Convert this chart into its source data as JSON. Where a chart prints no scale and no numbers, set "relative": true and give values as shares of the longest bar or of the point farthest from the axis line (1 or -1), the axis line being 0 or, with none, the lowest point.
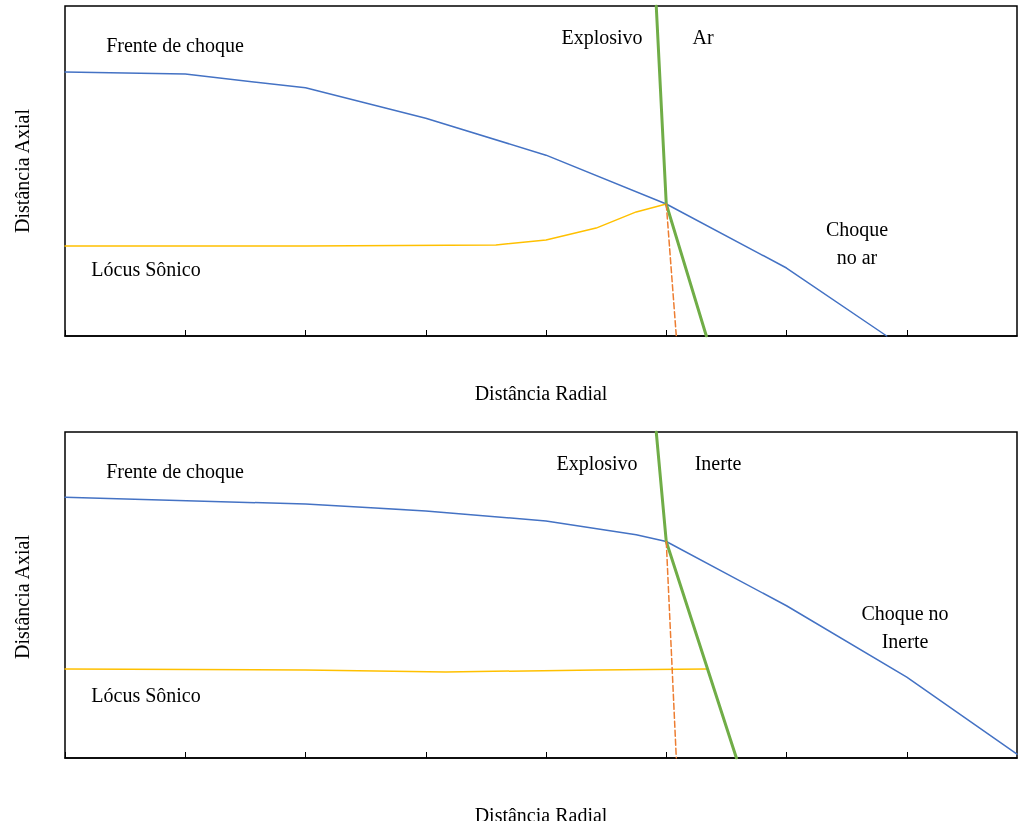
{
  "chart_data": [
    {
      "type": "line",
      "relative": true,
      "marker": "none",
      "xlabel": "Distância Radial",
      "ylabel": "Distância Axial",
      "categories": [
        null,
        null,
        null,
        null,
        null,
        null,
        null,
        null,
        null,
        null,
        null,
        null,
        null,
        null,
        null,
        null,
        null,
        null,
        null,
        null,
        null,
        null,
        null,
        null,
        null,
        null,
        null,
        null,
        null,
        null,
        null,
        null,
        null,
        null,
        null,
        null,
        null,
        null,
        null,
        null,
        null,
        null,
        null,
        null,
        null,
        null,
        null,
        null,
        null,
        null,
        null,
        null,
        null,
        null,
        null,
        null,
        null,
        null,
        null,
        null,
        null,
        null,
        null,
        null,
        null,
        null,
        null,
        null,
        null,
        null,
        null,
        null,
        null,
        null,
        null,
        null,
        null,
        null,
        null,
        null,
        null,
        null,
        null,
        null,
        null,
        null,
        null,
        null,
        null,
        null,
        null,
        null,
        null,
        null,
        null,
        null
      ],
      "series": [
        {
          "color": "#4472c4",
          "line_style": "solid",
          "values": [
            0.8,
            null,
            null,
            null,
            null,
            null,
            null,
            null,
            null,
            null,
            null,
            null,
            0.794,
            null,
            null,
            null,
            null,
            null,
            null,
            null,
            null,
            null,
            null,
            null,
            0.752,
            null,
            null,
            null,
            null,
            null,
            null,
            null,
            null,
            null,
            null,
            null,
            0.66,
            null,
            null,
            null,
            null,
            null,
            null,
            null,
            null,
            null,
            null,
            null,
            0.548,
            null,
            null,
            null,
            null,
            null,
            null,
            null,
            null,
            null,
            null,
            null,
            0.4,
            null,
            null,
            null,
            null,
            null,
            null,
            null,
            null,
            null,
            null,
            null,
            0.206,
            null,
            null,
            null,
            null,
            null,
            null,
            null,
            null,
            null,
            0,
            null,
            null,
            null,
            null,
            null,
            null,
            null,
            null,
            null,
            null,
            null,
            null,
            null
          ]
        },
        {
          "color": "#ffc000",
          "line_style": "solid",
          "values": [
            0.273,
            null,
            null,
            null,
            null,
            null,
            null,
            null,
            null,
            null,
            null,
            null,
            null,
            null,
            null,
            null,
            null,
            null,
            null,
            null,
            null,
            null,
            null,
            null,
            0.273,
            null,
            null,
            null,
            null,
            null,
            null,
            null,
            null,
            null,
            null,
            null,
            null,
            null,
            null,
            null,
            null,
            null,
            null,
            0.276,
            null,
            null,
            null,
            null,
            0.291,
            null,
            null,
            null,
            null,
            0.327,
            null,
            null,
            null,
            0.376,
            null,
            null,
            0.4,
            null,
            null,
            null,
            null,
            null,
            null,
            null,
            null,
            null,
            null,
            null,
            null,
            null,
            null,
            null,
            null,
            null,
            null,
            null,
            null,
            null,
            null,
            null,
            null,
            null,
            null,
            null,
            null,
            null,
            null,
            null,
            null,
            null,
            null,
            null
          ]
        },
        {
          "color": "#70ad47",
          "line_style": "solid",
          "values": [
            null,
            null,
            null,
            null,
            null,
            null,
            null,
            null,
            null,
            null,
            null,
            null,
            null,
            null,
            null,
            null,
            null,
            null,
            null,
            null,
            null,
            null,
            null,
            null,
            null,
            null,
            null,
            null,
            null,
            null,
            null,
            null,
            null,
            null,
            null,
            null,
            null,
            null,
            null,
            null,
            null,
            null,
            null,
            null,
            null,
            null,
            null,
            null,
            null,
            null,
            null,
            null,
            null,
            null,
            null,
            null,
            null,
            null,
            null,
            1,
            0.4,
            null,
            null,
            null,
            0,
            null,
            null,
            null,
            null,
            null,
            null,
            null,
            null,
            null,
            null,
            null,
            null,
            null,
            null,
            null,
            null,
            null,
            null,
            null,
            null,
            null,
            null,
            null,
            null,
            null,
            null,
            null,
            null,
            null,
            null,
            null
          ]
        },
        {
          "color": "#ed7d31",
          "line_style": "dashed",
          "values": [
            null,
            null,
            null,
            null,
            null,
            null,
            null,
            null,
            null,
            null,
            null,
            null,
            null,
            null,
            null,
            null,
            null,
            null,
            null,
            null,
            null,
            null,
            null,
            null,
            null,
            null,
            null,
            null,
            null,
            null,
            null,
            null,
            null,
            null,
            null,
            null,
            null,
            null,
            null,
            null,
            null,
            null,
            null,
            null,
            null,
            null,
            null,
            null,
            null,
            null,
            null,
            null,
            null,
            null,
            null,
            null,
            null,
            null,
            null,
            null,
            0.4,
            0,
            null,
            null,
            null,
            null,
            null,
            null,
            null,
            null,
            null,
            null,
            null,
            null,
            null,
            null,
            null,
            null,
            null,
            null,
            null,
            null,
            null,
            null,
            null,
            null,
            null,
            null,
            null,
            null,
            null,
            null,
            null,
            null,
            null,
            null
          ]
        }
      ],
      "annotations": [
        "Frente de choque",
        "Explosivo",
        "Ar",
        "Choque\nno ar",
        "Lócus Sônico"
      ]
    },
    {
      "type": "line",
      "relative": true,
      "marker": "none",
      "xlabel": "Distância Radial",
      "ylabel": "Distância Axial",
      "categories": [
        null,
        null,
        null,
        null,
        null,
        null,
        null,
        null,
        null,
        null,
        null,
        null,
        null,
        null,
        null,
        null,
        null,
        null,
        null,
        null,
        null,
        null,
        null,
        null,
        null,
        null,
        null,
        null,
        null,
        null,
        null,
        null,
        null,
        null,
        null,
        null,
        null,
        null,
        null,
        null,
        null,
        null,
        null,
        null,
        null,
        null,
        null,
        null,
        null,
        null,
        null,
        null,
        null,
        null,
        null,
        null,
        null,
        null,
        null,
        null,
        null,
        null,
        null,
        null,
        null,
        null,
        null,
        null,
        null,
        null,
        null,
        null,
        null,
        null,
        null,
        null,
        null,
        null,
        null,
        null,
        null,
        null,
        null,
        null,
        null,
        null,
        null,
        null,
        null,
        null,
        null,
        null,
        null,
        null,
        null,
        null
      ],
      "series": [
        {
          "color": "#4472c4",
          "line_style": "solid",
          "values": [
            0.8,
            null,
            null,
            null,
            null,
            null,
            null,
            null,
            null,
            null,
            null,
            null,
            null,
            null,
            null,
            null,
            null,
            null,
            null,
            null,
            null,
            null,
            null,
            null,
            0.779,
            null,
            null,
            null,
            null,
            null,
            null,
            null,
            null,
            null,
            null,
            null,
            0.758,
            null,
            null,
            null,
            null,
            null,
            null,
            null,
            null,
            null,
            null,
            null,
            0.727,
            null,
            null,
            null,
            null,
            null,
            null,
            null,
            null,
            0.685,
            null,
            null,
            0.664,
            null,
            null,
            null,
            null,
            null,
            null,
            null,
            null,
            null,
            null,
            null,
            0.467,
            null,
            null,
            null,
            null,
            null,
            null,
            null,
            null,
            null,
            null,
            null,
            0.248,
            null,
            null,
            null,
            null,
            null,
            null,
            null,
            null,
            null,
            null,
            0.012
          ]
        },
        {
          "color": "#ffc000",
          "line_style": "solid",
          "values": [
            0.273,
            null,
            null,
            null,
            null,
            null,
            null,
            null,
            null,
            null,
            null,
            null,
            null,
            null,
            null,
            null,
            null,
            null,
            null,
            null,
            null,
            null,
            null,
            null,
            0.27,
            null,
            null,
            null,
            null,
            null,
            null,
            null,
            null,
            null,
            null,
            null,
            null,
            null,
            0.264,
            null,
            null,
            null,
            null,
            null,
            null,
            null,
            null,
            null,
            null,
            null,
            null,
            null,
            null,
            0.27,
            null,
            null,
            null,
            null,
            null,
            null,
            null,
            null,
            null,
            null,
            0.273,
            null,
            null,
            null,
            null,
            null,
            null,
            null,
            null,
            null,
            null,
            null,
            null,
            null,
            null,
            null,
            null,
            null,
            null,
            null,
            null,
            null,
            null,
            null,
            null,
            null,
            null,
            null,
            null,
            null,
            null,
            null
          ]
        },
        {
          "color": "#70ad47",
          "line_style": "solid",
          "values": [
            null,
            null,
            null,
            null,
            null,
            null,
            null,
            null,
            null,
            null,
            null,
            null,
            null,
            null,
            null,
            null,
            null,
            null,
            null,
            null,
            null,
            null,
            null,
            null,
            null,
            null,
            null,
            null,
            null,
            null,
            null,
            null,
            null,
            null,
            null,
            null,
            null,
            null,
            null,
            null,
            null,
            null,
            null,
            null,
            null,
            null,
            null,
            null,
            null,
            null,
            null,
            null,
            null,
            null,
            null,
            null,
            null,
            null,
            null,
            1,
            0.664,
            null,
            null,
            null,
            null,
            null,
            null,
            0,
            null,
            null,
            null,
            null,
            null,
            null,
            null,
            null,
            null,
            null,
            null,
            null,
            null,
            null,
            null,
            null,
            null,
            null,
            null,
            null,
            null,
            null,
            null,
            null,
            null,
            null,
            null,
            null
          ]
        },
        {
          "color": "#ed7d31",
          "line_style": "dashed",
          "values": [
            null,
            null,
            null,
            null,
            null,
            null,
            null,
            null,
            null,
            null,
            null,
            null,
            null,
            null,
            null,
            null,
            null,
            null,
            null,
            null,
            null,
            null,
            null,
            null,
            null,
            null,
            null,
            null,
            null,
            null,
            null,
            null,
            null,
            null,
            null,
            null,
            null,
            null,
            null,
            null,
            null,
            null,
            null,
            null,
            null,
            null,
            null,
            null,
            null,
            null,
            null,
            null,
            null,
            null,
            null,
            null,
            null,
            null,
            null,
            null,
            0.664,
            0,
            null,
            null,
            null,
            null,
            null,
            null,
            null,
            null,
            null,
            null,
            null,
            null,
            null,
            null,
            null,
            null,
            null,
            null,
            null,
            null,
            null,
            null,
            null,
            null,
            null,
            null,
            null,
            null,
            null,
            null,
            null,
            null,
            null,
            null
          ]
        }
      ],
      "annotations": [
        "Frente de choque",
        "Explosivo",
        "Inerte",
        "Choque no\nInerte",
        "Lócus Sônico"
      ]
    }
  ]
}
